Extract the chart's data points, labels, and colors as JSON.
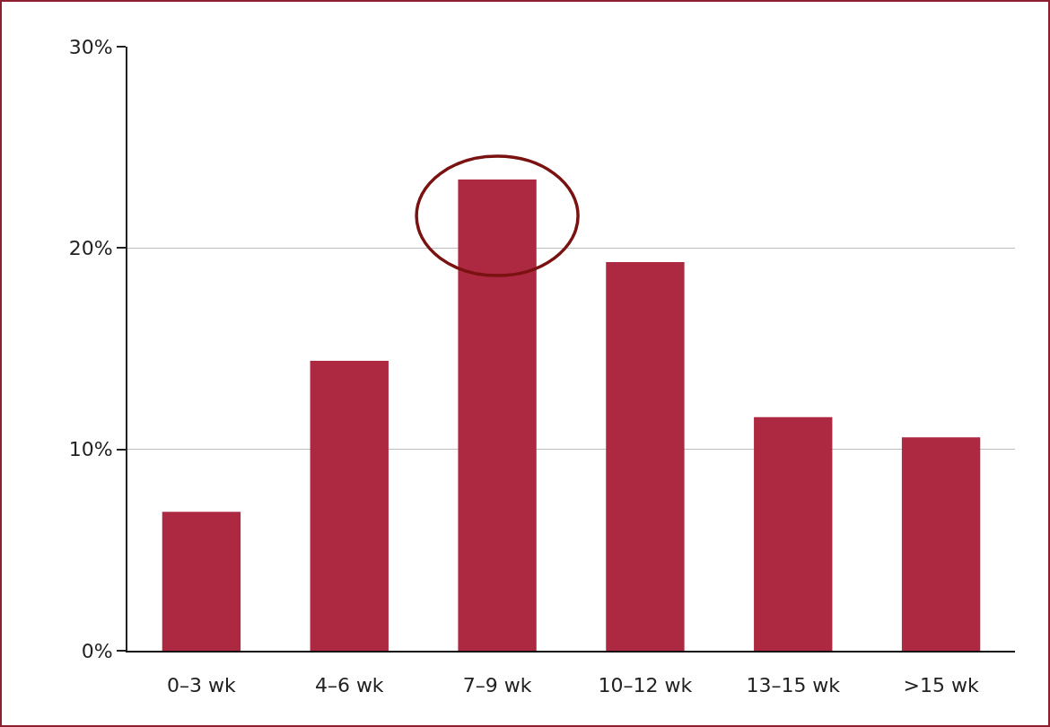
{
  "chart_data": {
    "type": "bar",
    "categories": [
      "0–3 wk",
      "4–6 wk",
      "7–9 wk",
      "10–12 wk",
      "13–15 wk",
      ">15 wk"
    ],
    "values": [
      6.9,
      14.4,
      23.4,
      19.3,
      11.6,
      10.6
    ],
    "color": "#ad2942",
    "ylim": [
      0,
      30
    ],
    "yticks": [
      {
        "value": 0,
        "label": "0%"
      },
      {
        "value": 10,
        "label": "10%"
      },
      {
        "value": 20,
        "label": "20%"
      },
      {
        "value": 30,
        "label": "30%"
      }
    ],
    "grid": "y"
  }
}
